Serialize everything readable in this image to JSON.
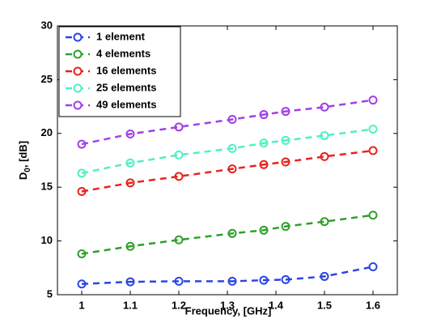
{
  "chart_data": {
    "type": "line",
    "xlabel": "Frequency, [GHz]",
    "ylabel": {
      "base": "D",
      "sub": "0",
      "rest": ", [dB]"
    },
    "x": [
      1,
      1.1,
      1.2,
      1.31,
      1.375,
      1.42,
      1.5,
      1.6
    ],
    "series": [
      {
        "name": "1 element",
        "color": "#2b45e6",
        "values": [
          6.0,
          6.2,
          6.25,
          6.25,
          6.35,
          6.4,
          6.7,
          7.6
        ]
      },
      {
        "name": "4 elements",
        "color": "#2ea12a",
        "values": [
          8.8,
          9.5,
          10.1,
          10.7,
          11.0,
          11.35,
          11.8,
          12.4
        ]
      },
      {
        "name": "16 elements",
        "color": "#e8231f",
        "values": [
          14.6,
          15.4,
          16.0,
          16.7,
          17.1,
          17.35,
          17.85,
          18.4
        ]
      },
      {
        "name": "25 elements",
        "color": "#4ef0c4",
        "values": [
          16.3,
          17.25,
          18.0,
          18.6,
          19.1,
          19.35,
          19.8,
          20.4
        ]
      },
      {
        "name": "49 elements",
        "color": "#a040e6",
        "values": [
          19.0,
          19.95,
          20.6,
          21.3,
          21.75,
          22.05,
          22.45,
          23.1
        ]
      }
    ],
    "xlim": [
      0.95,
      1.65
    ],
    "xticks": [
      1,
      1.1,
      1.2,
      1.3,
      1.4,
      1.5,
      1.6
    ],
    "ylim": [
      5,
      30
    ],
    "yticks": [
      5,
      10,
      15,
      20,
      25,
      30
    ],
    "legend": "upper-left",
    "grid": false
  }
}
